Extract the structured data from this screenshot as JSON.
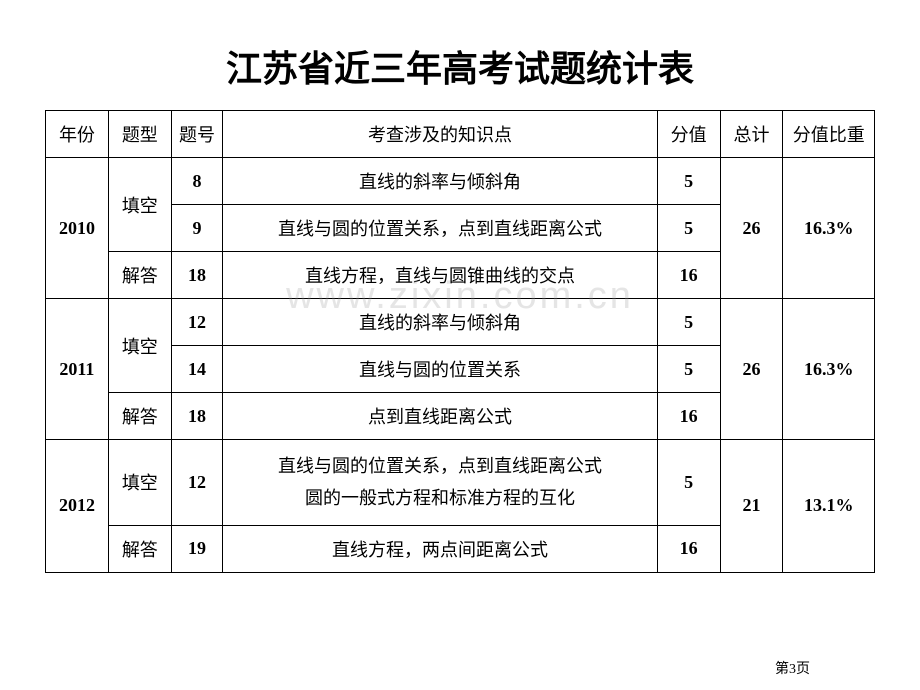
{
  "title": "江苏省近三年高考试题统计表",
  "watermark": "www.zixin.com.cn",
  "pageNumber": "第3页",
  "headers": {
    "year": "年份",
    "type": "题型",
    "num": "题号",
    "topic": "考查涉及的知识点",
    "score": "分值",
    "total": "总计",
    "weight": "分值比重"
  },
  "rows": {
    "r2010": {
      "year": "2010",
      "type1": "填空",
      "type2": "解答",
      "num1": "8",
      "num2": "9",
      "num3": "18",
      "topic1": "直线的斜率与倾斜角",
      "topic2": "直线与圆的位置关系，点到直线距离公式",
      "topic3": "直线方程，直线与圆锥曲线的交点",
      "score1": "5",
      "score2": "5",
      "score3": "16",
      "total": "26",
      "weight": "16.3%"
    },
    "r2011": {
      "year": "2011",
      "type1": "填空",
      "type2": "解答",
      "num1": "12",
      "num2": "14",
      "num3": "18",
      "topic1": "直线的斜率与倾斜角",
      "topic2": "直线与圆的位置关系",
      "topic3": "点到直线距离公式",
      "score1": "5",
      "score2": "5",
      "score3": "16",
      "total": "26",
      "weight": "16.3%"
    },
    "r2012": {
      "year": "2012",
      "type1": "填空",
      "type2": "解答",
      "num1": "12",
      "num2": "19",
      "topic1a": "直线与圆的位置关系，点到直线距离公式",
      "topic1b": "圆的一般式方程和标准方程的互化",
      "topic2": "直线方程，两点间距离公式",
      "score1": "5",
      "score2": "16",
      "total": "21",
      "weight": "13.1%"
    }
  }
}
